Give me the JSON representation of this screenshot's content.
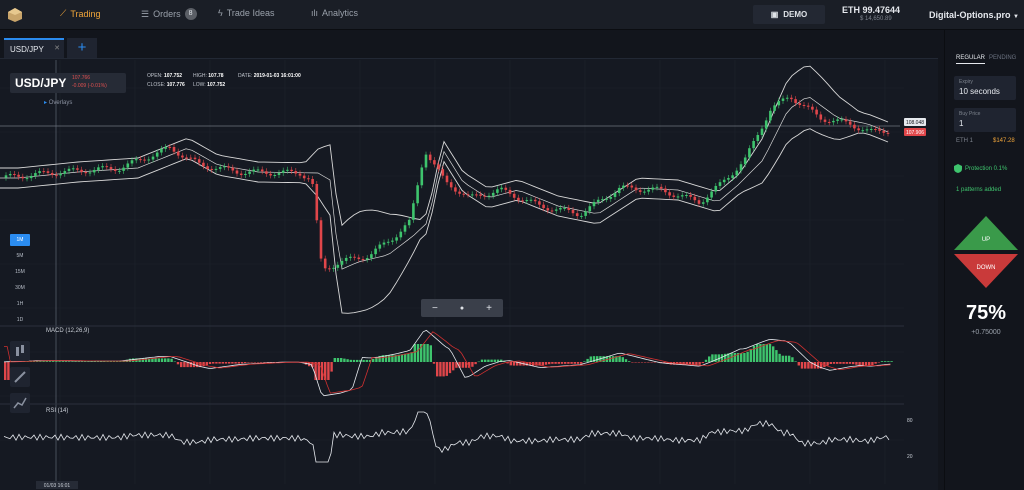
{
  "nav": {
    "trading": "Trading",
    "orders": "Orders",
    "orders_badge": "8",
    "trade_ideas": "Trade Ideas",
    "analytics": "Analytics",
    "demo": "DEMO",
    "balance": "ETH 99.47644",
    "balance_sub": "$ 14,650.89",
    "account": "Digital-Options.pro"
  },
  "tabs": [
    {
      "label": "USD/JPY"
    }
  ],
  "chart": {
    "symbol": "USD/JPY",
    "price_line1": "107.766",
    "price_line2": "-0.009 (-0.01%)",
    "open_label": "OPEN:",
    "open": "107.752",
    "high_label": "HIGH:",
    "high": "107.78",
    "date_label": "DATE:",
    "date": "2019-01-03 16:01:00",
    "close_label": "CLOSE:",
    "close": "107.776",
    "low_label": "LOW:",
    "low": "107.752",
    "overlays": "Overlays",
    "timeframes": [
      "1M",
      "5M",
      "15M",
      "30M",
      "1H",
      "1D"
    ],
    "selected_timeframe": "1M",
    "zoom": {
      "minus": "−",
      "reset": "●",
      "plus": "+"
    },
    "macd_label": "MACD (12,26,9)",
    "rsi_label": "RSI (14)",
    "price_tag_upper": "108.048",
    "price_tag_lower": "107.906",
    "cursor_time": "01/03 16:01",
    "rsi_levels": [
      "80",
      "20"
    ],
    "colors": {
      "up": "#3ec46d",
      "down": "#e0464a",
      "band": "#d8d8d8",
      "accent": "#2b8cf0"
    }
  },
  "panel": {
    "tab_regular": "REGULAR",
    "tab_pending": "PENDING",
    "expiry_label": "Expiry",
    "expiry_value": "10 seconds",
    "buy_price_label": "Buy Price",
    "buy_price_value": "1",
    "eth_label": "ETH 1",
    "eth_value": "$147.28",
    "protection": "Protection 0.1%",
    "patterns": "1 patterns added",
    "up": "UP",
    "down": "DOWN",
    "payout_pct": "75%",
    "payout_value": "+0.75000"
  }
}
